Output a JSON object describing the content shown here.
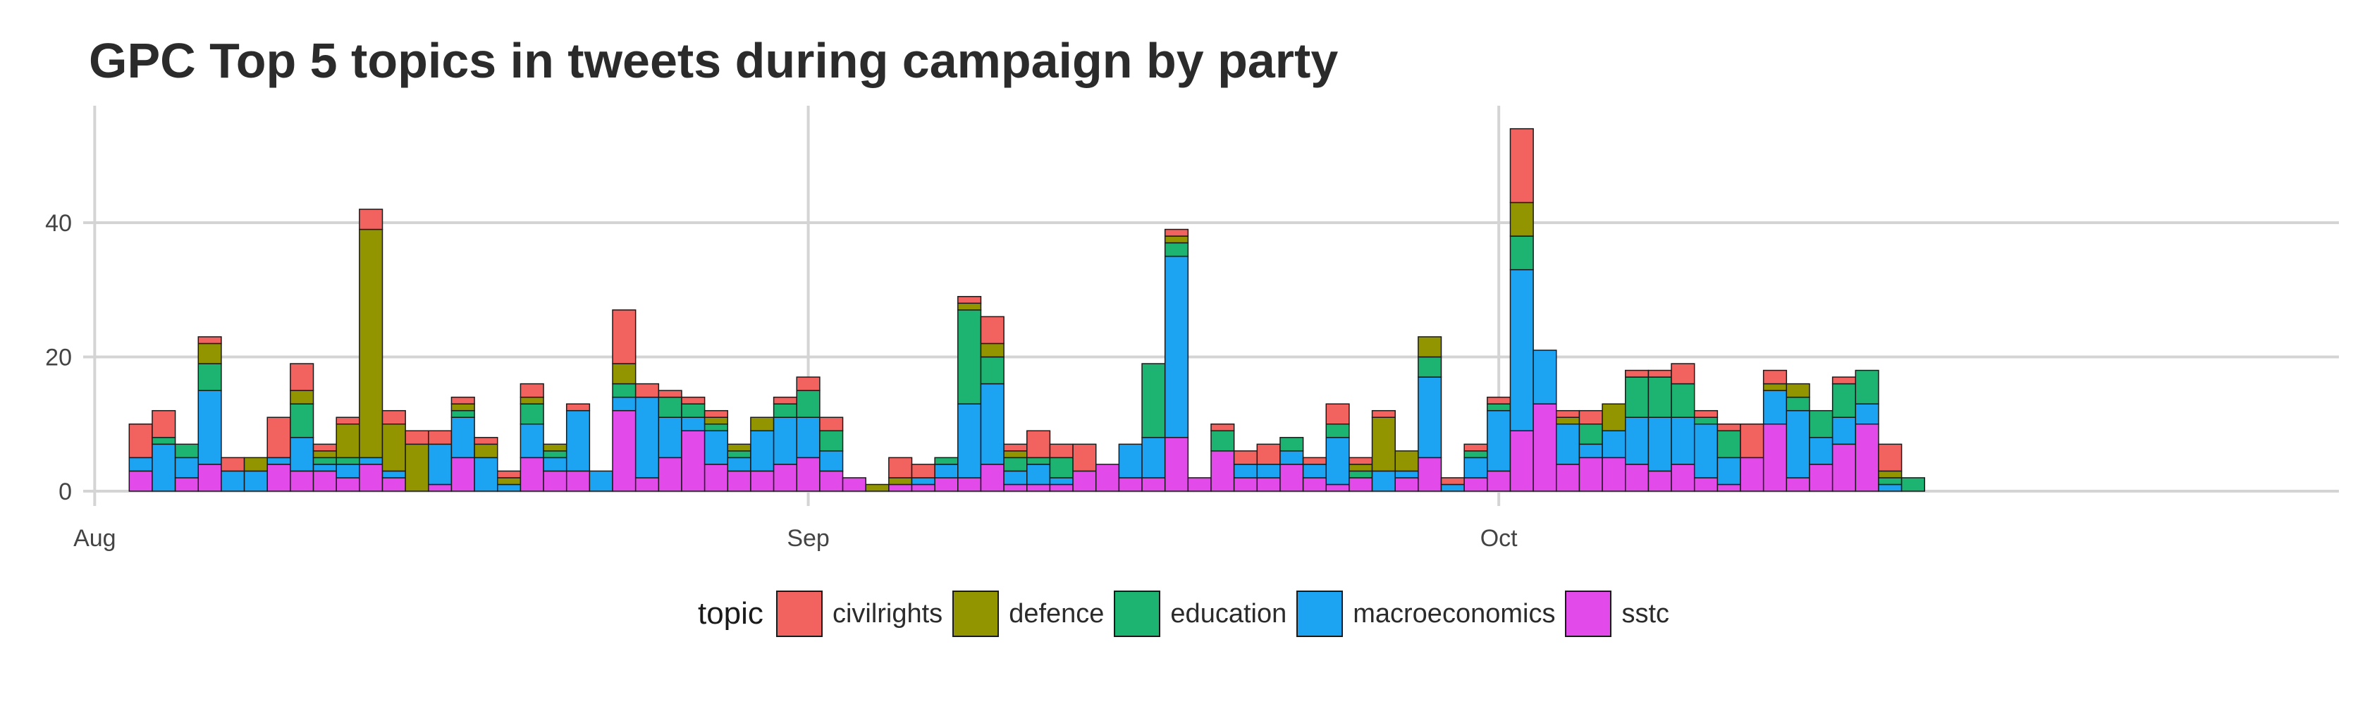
{
  "chart_data": {
    "type": "bar",
    "stacked": true,
    "title": "GPC Top 5 topics in tweets during campaign by party",
    "xlabel": "",
    "ylabel": "",
    "ylim": [
      0,
      57
    ],
    "x_axis_type": "date",
    "x_ticks": [
      {
        "date": "2015-08-01",
        "label": "Aug"
      },
      {
        "date": "2015-09-01",
        "label": "Sep"
      },
      {
        "date": "2015-10-01",
        "label": "Oct"
      }
    ],
    "y_ticks": [
      0,
      20,
      40
    ],
    "grid": true,
    "legend_position": "bottom",
    "legend_title": "topic",
    "stack_order": [
      "sstc",
      "macroeconomics",
      "education",
      "defence",
      "civilrights"
    ],
    "colors": {
      "civilrights": "#F2625E",
      "defence": "#939500",
      "education": "#1DB471",
      "macroeconomics": "#1CA3F2",
      "sstc": "#E24BEA"
    },
    "categories": [
      "2015-08-03",
      "2015-08-04",
      "2015-08-05",
      "2015-08-06",
      "2015-08-07",
      "2015-08-08",
      "2015-08-09",
      "2015-08-10",
      "2015-08-11",
      "2015-08-12",
      "2015-08-13",
      "2015-08-14",
      "2015-08-15",
      "2015-08-16",
      "2015-08-17",
      "2015-08-18",
      "2015-08-19",
      "2015-08-20",
      "2015-08-21",
      "2015-08-22",
      "2015-08-23",
      "2015-08-24",
      "2015-08-25",
      "2015-08-26",
      "2015-08-27",
      "2015-08-28",
      "2015-08-29",
      "2015-08-30",
      "2015-08-31",
      "2015-09-01",
      "2015-09-02",
      "2015-09-03",
      "2015-09-04",
      "2015-09-05",
      "2015-09-06",
      "2015-09-07",
      "2015-09-08",
      "2015-09-09",
      "2015-09-10",
      "2015-09-11",
      "2015-09-12",
      "2015-09-13",
      "2015-09-14",
      "2015-09-15",
      "2015-09-16",
      "2015-09-17",
      "2015-09-18",
      "2015-09-19",
      "2015-09-20",
      "2015-09-21",
      "2015-09-22",
      "2015-09-23",
      "2015-09-24",
      "2015-09-25",
      "2015-09-26",
      "2015-09-27",
      "2015-09-28",
      "2015-09-29",
      "2015-09-30",
      "2015-10-01",
      "2015-10-02",
      "2015-10-03",
      "2015-10-04",
      "2015-10-05",
      "2015-10-06",
      "2015-10-07",
      "2015-10-08",
      "2015-10-09",
      "2015-10-10",
      "2015-10-11",
      "2015-10-12",
      "2015-10-13",
      "2015-10-14",
      "2015-10-15",
      "2015-10-16",
      "2015-10-17",
      "2015-10-18",
      "2015-10-19"
    ],
    "series": [
      {
        "name": "sstc",
        "values": [
          3,
          0,
          2,
          4,
          0,
          0,
          4,
          3,
          3,
          2,
          4,
          2,
          0,
          1,
          5,
          0,
          0,
          5,
          3,
          3,
          0,
          12,
          2,
          5,
          9,
          4,
          3,
          3,
          4,
          5,
          3,
          2,
          0,
          1,
          1,
          2,
          2,
          4,
          1,
          1,
          1,
          3,
          4,
          2,
          2,
          8,
          2,
          6,
          2,
          2,
          4,
          2,
          1,
          2,
          0,
          2,
          5,
          0,
          2,
          3,
          9,
          13,
          4,
          5,
          5,
          4,
          3,
          4,
          2,
          1,
          5,
          10,
          2,
          4,
          7,
          10,
          0,
          0
        ]
      },
      {
        "name": "macroeconomics",
        "values": [
          2,
          7,
          3,
          11,
          3,
          3,
          1,
          5,
          1,
          2,
          1,
          1,
          0,
          6,
          6,
          5,
          1,
          5,
          2,
          9,
          3,
          2,
          12,
          6,
          2,
          5,
          2,
          6,
          7,
          6,
          3,
          0,
          0,
          0,
          1,
          2,
          11,
          12,
          2,
          3,
          1,
          0,
          0,
          5,
          6,
          27,
          0,
          0,
          2,
          2,
          2,
          2,
          7,
          0,
          3,
          1,
          12,
          1,
          3,
          9,
          24,
          8,
          6,
          2,
          4,
          7,
          8,
          7,
          8,
          4,
          0,
          5,
          10,
          4,
          4,
          3,
          1,
          0
        ]
      },
      {
        "name": "education",
        "values": [
          0,
          1,
          2,
          4,
          0,
          0,
          0,
          5,
          1,
          1,
          0,
          0,
          0,
          0,
          1,
          0,
          0,
          3,
          1,
          0,
          0,
          2,
          0,
          3,
          2,
          1,
          1,
          0,
          2,
          4,
          3,
          0,
          0,
          0,
          0,
          1,
          14,
          4,
          2,
          1,
          3,
          0,
          0,
          0,
          11,
          2,
          0,
          3,
          0,
          0,
          2,
          0,
          2,
          1,
          0,
          0,
          3,
          0,
          1,
          1,
          5,
          0,
          0,
          3,
          0,
          6,
          6,
          5,
          1,
          4,
          0,
          0,
          2,
          4,
          5,
          5,
          1,
          2
        ]
      },
      {
        "name": "defence",
        "values": [
          0,
          0,
          0,
          3,
          0,
          2,
          0,
          2,
          1,
          5,
          34,
          7,
          7,
          0,
          1,
          2,
          1,
          1,
          1,
          0,
          0,
          3,
          0,
          0,
          0,
          1,
          1,
          2,
          0,
          0,
          0,
          0,
          1,
          1,
          0,
          0,
          1,
          2,
          1,
          0,
          0,
          0,
          0,
          0,
          0,
          1,
          0,
          0,
          0,
          0,
          0,
          0,
          0,
          1,
          8,
          3,
          3,
          0,
          0,
          0,
          5,
          0,
          1,
          0,
          4,
          0,
          0,
          0,
          0,
          0,
          0,
          1,
          2,
          0,
          0,
          0,
          1,
          0
        ]
      },
      {
        "name": "civilrights",
        "values": [
          5,
          4,
          0,
          1,
          2,
          0,
          6,
          4,
          1,
          1,
          3,
          2,
          2,
          2,
          1,
          1,
          1,
          2,
          0,
          1,
          0,
          8,
          2,
          1,
          1,
          1,
          0,
          0,
          1,
          2,
          2,
          0,
          0,
          3,
          2,
          0,
          1,
          4,
          1,
          4,
          2,
          4,
          0,
          0,
          0,
          1,
          0,
          1,
          2,
          3,
          0,
          1,
          3,
          1,
          1,
          0,
          0,
          1,
          1,
          1,
          11,
          0,
          1,
          2,
          0,
          1,
          1,
          3,
          1,
          1,
          5,
          2,
          0,
          0,
          1,
          0,
          4,
          0
        ]
      }
    ]
  }
}
